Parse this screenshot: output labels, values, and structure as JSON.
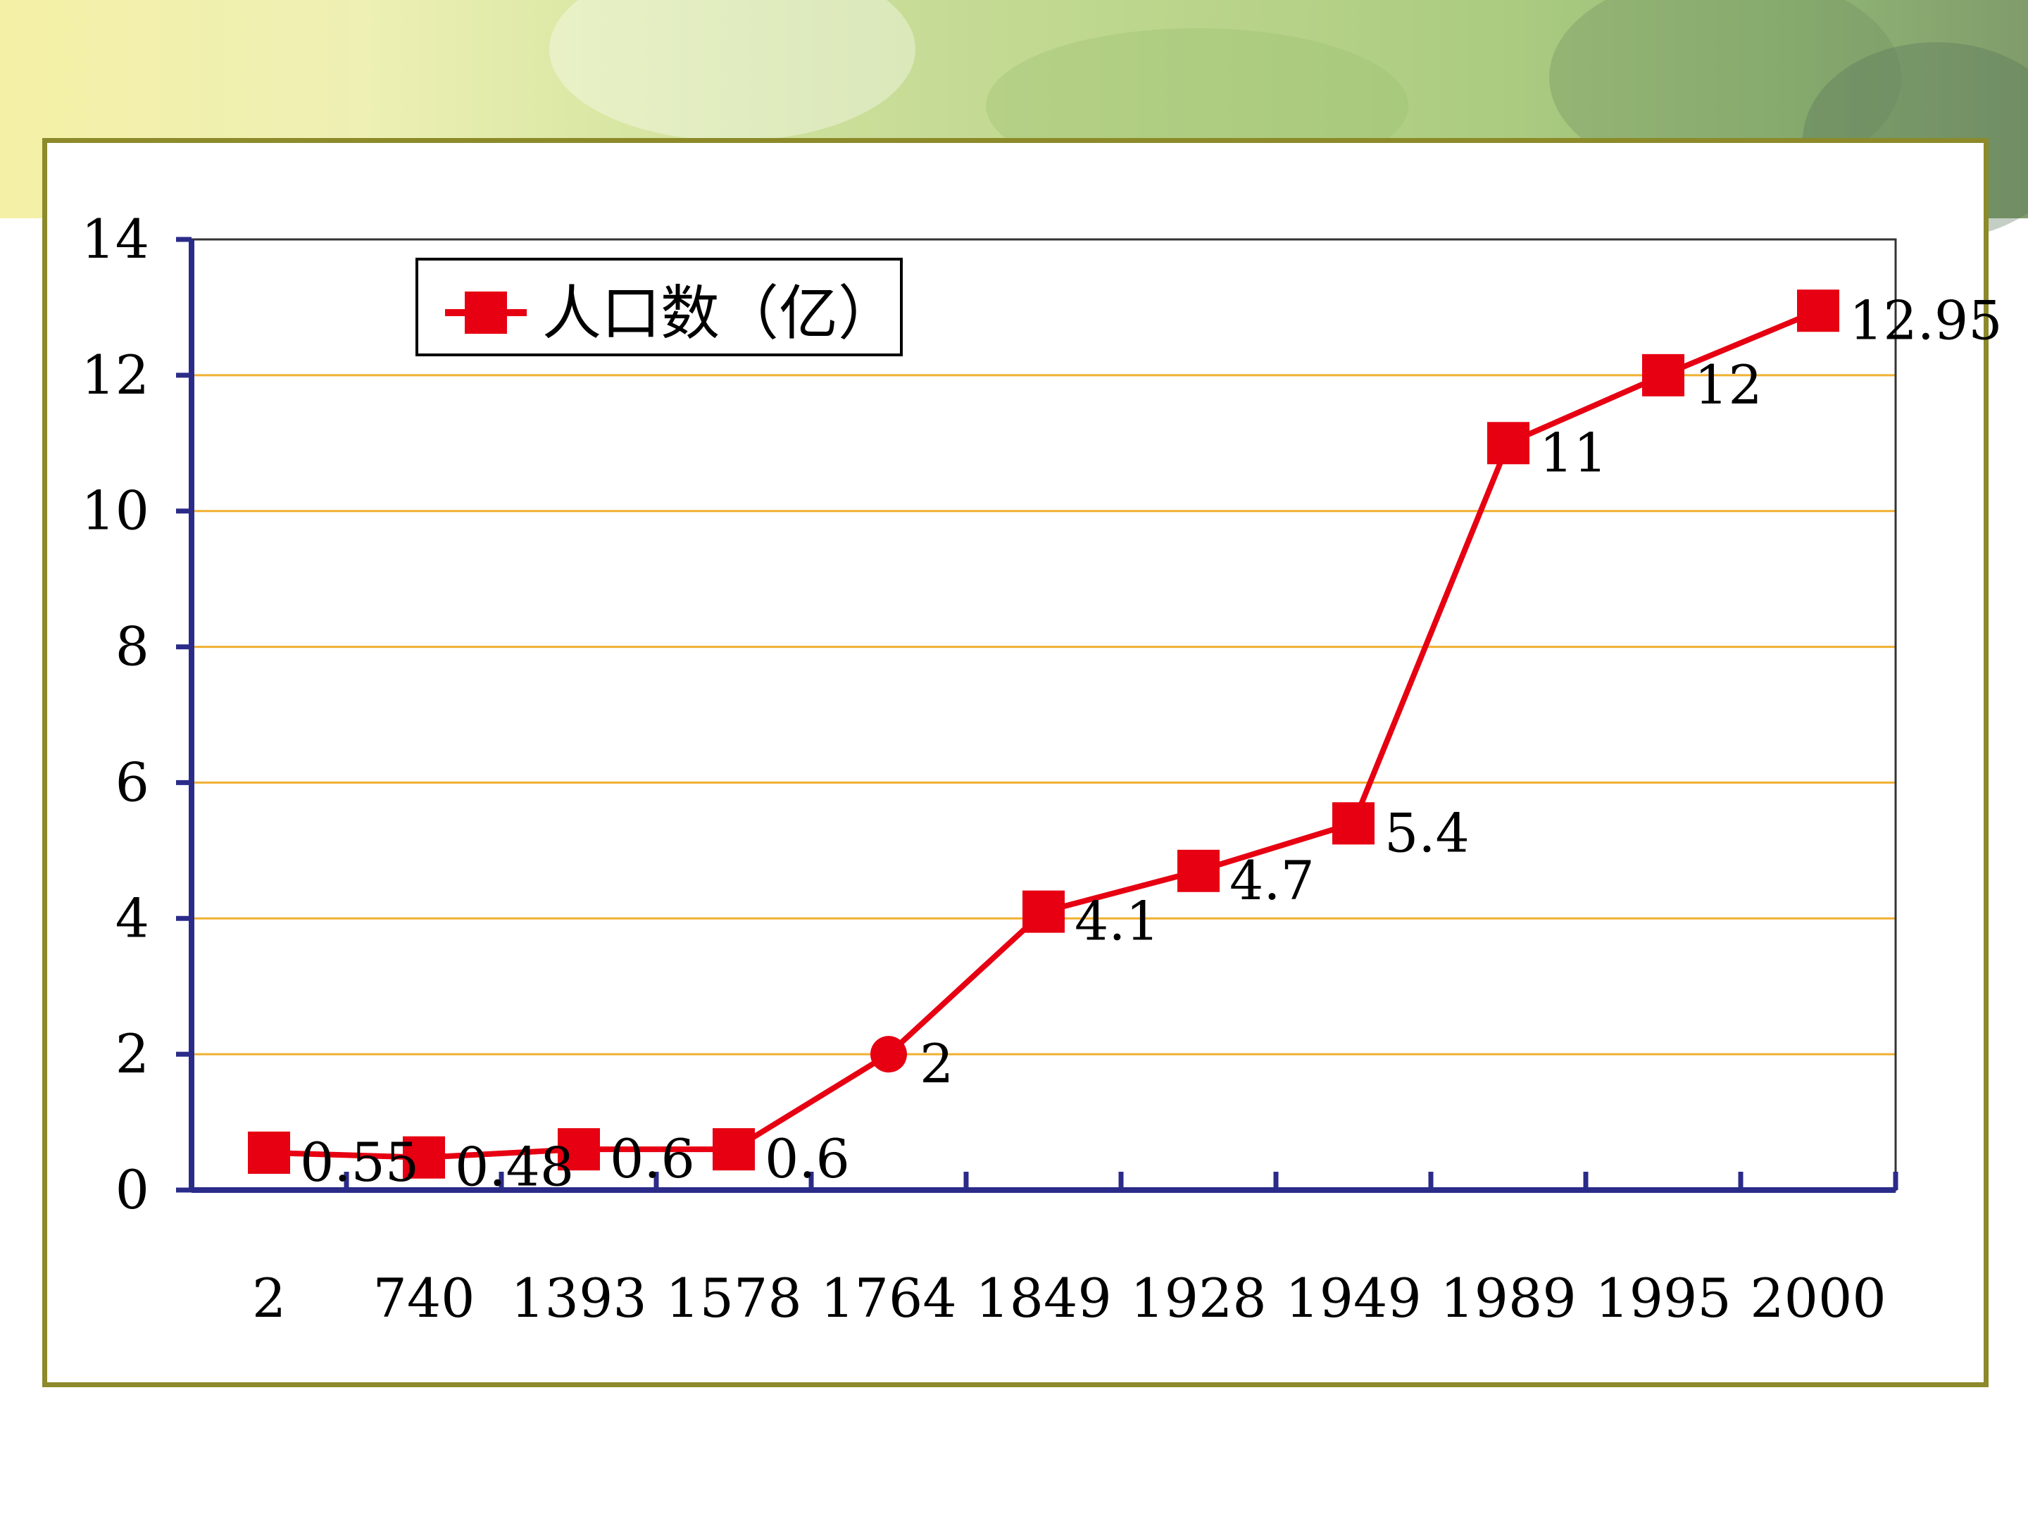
{
  "chart_data": {
    "type": "line",
    "categories": [
      "2",
      "740",
      "1393",
      "1578",
      "1764",
      "1849",
      "1928",
      "1949",
      "1989",
      "1995",
      "2000"
    ],
    "series": [
      {
        "name": "人口数（亿）",
        "values": [
          0.55,
          0.48,
          0.6,
          0.6,
          2,
          4.1,
          4.7,
          5.4,
          11,
          12,
          12.95
        ],
        "data_labels": [
          "0.55",
          "0.48",
          "0.6",
          "0.6",
          "2",
          "4.1",
          "4.7",
          "5.4",
          "11",
          "12",
          "12.95"
        ],
        "color": "#e60012"
      }
    ],
    "y_ticks": [
      "0",
      "2",
      "4",
      "6",
      "8",
      "10",
      "12",
      "14"
    ],
    "ylim": [
      0,
      14
    ],
    "legend": "top-left",
    "grid": true,
    "colors": {
      "axis": "#2b2b8a",
      "grid": "#f0b030",
      "frame": "#8c8a2a"
    }
  }
}
